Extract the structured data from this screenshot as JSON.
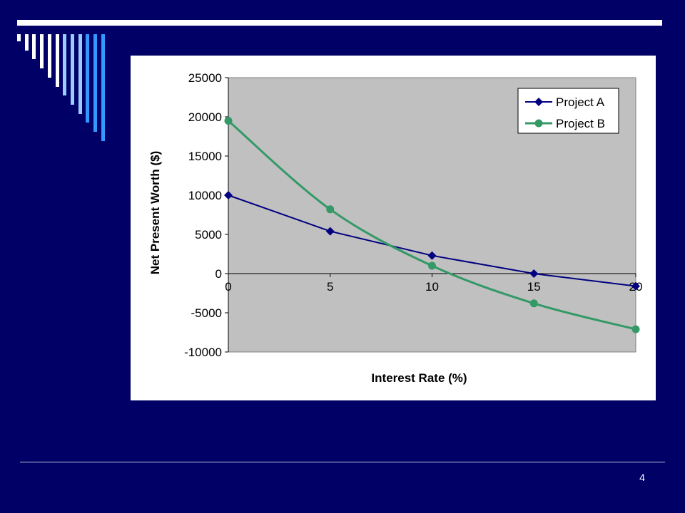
{
  "slide": {
    "page_number": "4",
    "colors": {
      "background": "#000066",
      "stripes_light": "#ffffff",
      "stripes_dark": "#3399ff"
    }
  },
  "chart_data": {
    "type": "line",
    "xlabel": "Interest Rate (%)",
    "ylabel": "Net Present Worth ($)",
    "x": [
      0,
      5,
      10,
      15,
      20
    ],
    "xlim": [
      0,
      20
    ],
    "ylim": [
      -10000,
      25000
    ],
    "y_ticks": [
      25000,
      20000,
      15000,
      10000,
      5000,
      0,
      -5000,
      -10000
    ],
    "x_ticks": [
      0,
      5,
      10,
      15,
      20
    ],
    "grid": false,
    "plot_background": "#c0c0c0",
    "legend_position": "top-right",
    "series": [
      {
        "name": "Project A",
        "values": [
          10000,
          5400,
          2300,
          0,
          -1600
        ],
        "color": "#000080",
        "marker": "diamond"
      },
      {
        "name": "Project B",
        "values": [
          19500,
          8200,
          1000,
          -3800,
          -7100
        ],
        "color": "#339966",
        "marker": "circle"
      }
    ]
  }
}
